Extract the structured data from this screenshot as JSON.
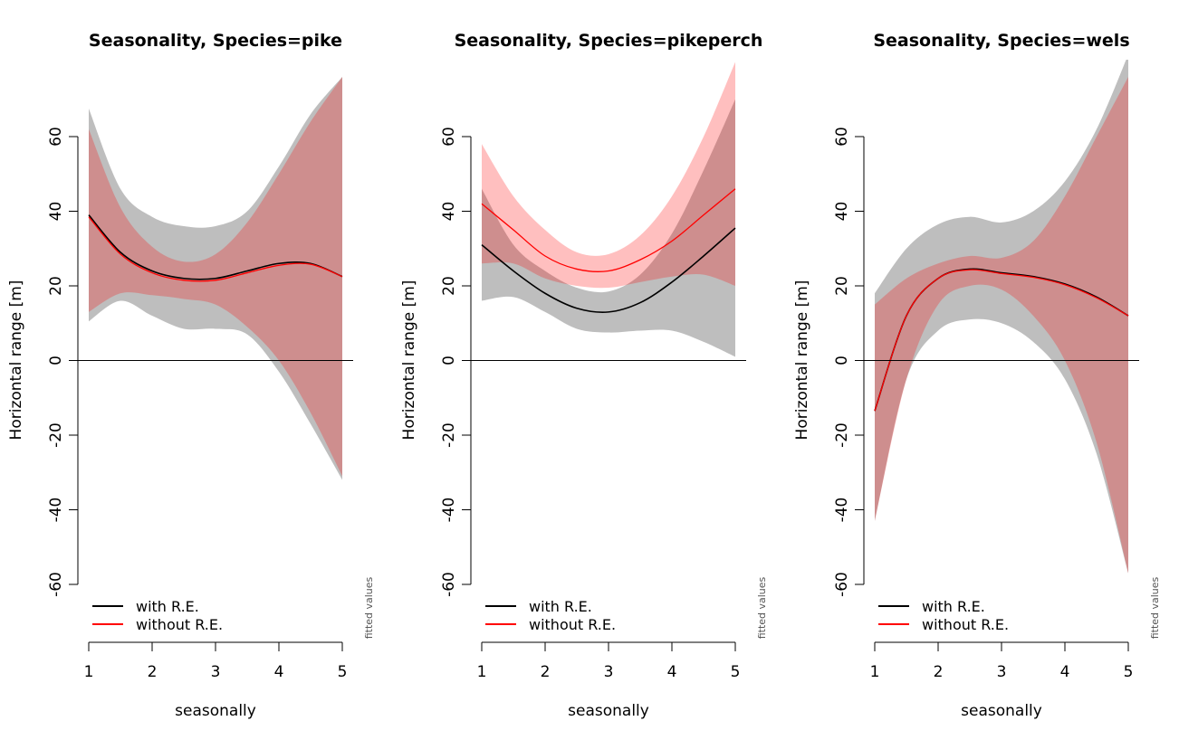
{
  "chart_data": [
    {
      "type": "line",
      "title": "Seasonality, Species=pike",
      "xlabel": "seasonally",
      "ylabel": "Horizontal range [m]",
      "note": "fitted values",
      "xlim": [
        1,
        5
      ],
      "ylim": [
        -60,
        60
      ],
      "x_ticks": [
        "1",
        "2",
        "3",
        "4",
        "5"
      ],
      "y_ticks": [
        "-60",
        "-40",
        "-20",
        "0",
        "20",
        "40",
        "60"
      ],
      "legend": {
        "position": "bottom-left",
        "entries": [
          "with R.E.",
          "without R.E."
        ]
      },
      "x": [
        1,
        1.5,
        2,
        2.5,
        3,
        3.5,
        4,
        4.5,
        5
      ],
      "series": [
        {
          "name": "with R.E.",
          "color": "#000000",
          "values": [
            39,
            29,
            24,
            22,
            22,
            24,
            26,
            26,
            22.5
          ],
          "lower": [
            10.5,
            16,
            12,
            8.5,
            8.5,
            7,
            -3,
            -17,
            -32
          ],
          "upper": [
            67.5,
            46,
            38.5,
            36,
            36,
            40,
            52,
            66,
            76
          ],
          "band_color": "#bebebe"
        },
        {
          "name": "without R.E.",
          "color": "#ff0000",
          "values": [
            38.5,
            28.5,
            23.5,
            21.5,
            21.5,
            23.5,
            25.5,
            25.8,
            22.5
          ],
          "lower": [
            13,
            18,
            17.5,
            16.5,
            15,
            9,
            0,
            -14,
            -31
          ],
          "upper": [
            62,
            41,
            30.5,
            26.5,
            28.5,
            37,
            50,
            64,
            76
          ],
          "band_color": "rgba(255,0,0,0.25)"
        }
      ]
    },
    {
      "type": "line",
      "title": "Seasonality, Species=pikeperch",
      "xlabel": "seasonally",
      "ylabel": "Horizontal range [m]",
      "note": "fitted values",
      "xlim": [
        1,
        5
      ],
      "ylim": [
        -60,
        60
      ],
      "x_ticks": [
        "1",
        "2",
        "3",
        "4",
        "5"
      ],
      "y_ticks": [
        "-60",
        "-40",
        "-20",
        "0",
        "20",
        "40",
        "60"
      ],
      "legend": {
        "position": "bottom-left",
        "entries": [
          "with R.E.",
          "without R.E."
        ]
      },
      "x": [
        1,
        1.5,
        2,
        2.5,
        3,
        3.5,
        4,
        4.5,
        5
      ],
      "series": [
        {
          "name": "with R.E.",
          "color": "#000000",
          "values": [
            31,
            24,
            18,
            14,
            13,
            15.5,
            21,
            28,
            35.5
          ],
          "lower": [
            16,
            17,
            13,
            8.5,
            7.5,
            8,
            8,
            5,
            1
          ],
          "upper": [
            46,
            31,
            24,
            19.5,
            18.5,
            23,
            34,
            51,
            70
          ],
          "band_color": "#bebebe"
        },
        {
          "name": "without R.E.",
          "color": "#ff0000",
          "values": [
            42,
            35,
            28,
            24.5,
            24,
            27,
            32,
            39,
            46
          ],
          "lower": [
            26,
            26,
            22,
            20,
            19.5,
            21,
            22.5,
            23,
            20
          ],
          "upper": [
            58,
            44,
            35,
            29,
            28.5,
            33.5,
            44,
            60,
            80
          ],
          "band_color": "rgba(255,0,0,0.25)"
        }
      ]
    },
    {
      "type": "line",
      "title": "Seasonality, Species=wels",
      "xlabel": "seasonally",
      "ylabel": "Horizontal range [m]",
      "note": "fitted values",
      "xlim": [
        1,
        5
      ],
      "ylim": [
        -60,
        60
      ],
      "x_ticks": [
        "1",
        "2",
        "3",
        "4",
        "5"
      ],
      "y_ticks": [
        "-60",
        "-40",
        "-20",
        "0",
        "20",
        "40",
        "60"
      ],
      "legend": {
        "position": "bottom-left",
        "entries": [
          "with R.E.",
          "without R.E."
        ]
      },
      "x": [
        1,
        1.5,
        2,
        2.5,
        3,
        3.5,
        4,
        4.5,
        5
      ],
      "series": [
        {
          "name": "with R.E.",
          "color": "#000000",
          "values": [
            -13.5,
            12,
            22,
            24.5,
            23.5,
            22.5,
            20.5,
            17,
            12
          ],
          "lower": [
            -43,
            -5,
            8,
            11,
            10,
            5,
            -5,
            -25,
            -57
          ],
          "upper": [
            18,
            30,
            36.5,
            38.5,
            37,
            40,
            48,
            62,
            82
          ],
          "band_color": "#bebebe"
        },
        {
          "name": "without R.E.",
          "color": "#ff0000",
          "values": [
            -13.5,
            12,
            22,
            24.3,
            23.3,
            22.3,
            20.3,
            16.8,
            12
          ],
          "lower": [
            -43,
            -5,
            15,
            20,
            19,
            12,
            0,
            -22,
            -57
          ],
          "upper": [
            15,
            22,
            26,
            28,
            27.5,
            32,
            44,
            60,
            76
          ],
          "band_color": "rgba(255,0,0,0.25)"
        }
      ]
    }
  ]
}
